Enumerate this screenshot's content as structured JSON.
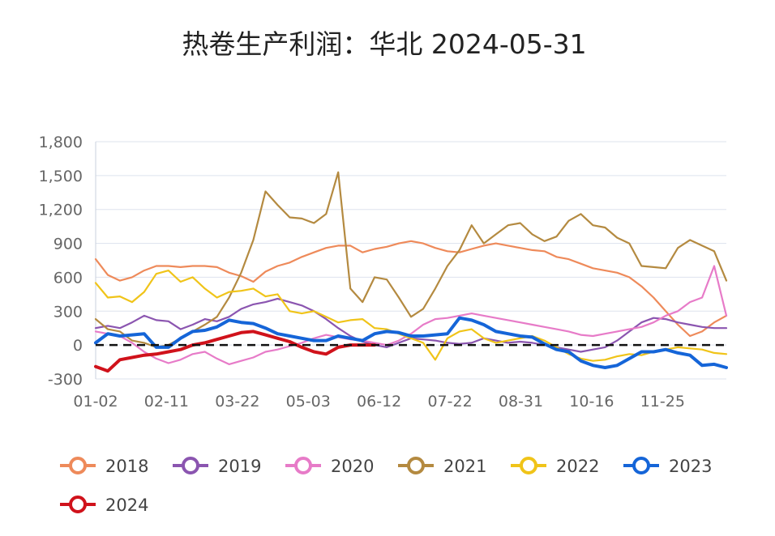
{
  "chart_data": {
    "type": "line",
    "title": "热卷生产利润：华北 2024-05-31",
    "xlabel": "",
    "ylabel": "",
    "x_tick_labels": [
      "01-02",
      "02-11",
      "03-22",
      "05-03",
      "06-12",
      "07-22",
      "08-31",
      "10-16",
      "11-25"
    ],
    "y_tick_labels": [
      "1,800",
      "1,500",
      "1,200",
      "900",
      "600",
      "300",
      "0",
      "-300"
    ],
    "ylim": [
      -300,
      1800
    ],
    "xlim": [
      0,
      52
    ],
    "zero_reference_line": "dashed black",
    "grid": "horizontal",
    "legend_position": "bottom",
    "series": [
      {
        "name": "2018",
        "color": "#ee8a5a",
        "x": [
          0,
          1,
          2,
          3,
          4,
          5,
          6,
          7,
          8,
          9,
          10,
          11,
          12,
          13,
          14,
          15,
          16,
          17,
          18,
          19,
          20,
          21,
          22,
          23,
          24,
          25,
          26,
          27,
          28,
          29,
          30,
          31,
          32,
          33,
          34,
          35,
          36,
          37,
          38,
          39,
          40,
          41,
          42,
          43,
          44,
          45,
          46,
          47,
          48,
          49,
          50,
          51,
          52
        ],
        "y": [
          760,
          620,
          570,
          600,
          660,
          700,
          700,
          690,
          700,
          700,
          690,
          640,
          610,
          560,
          650,
          700,
          730,
          780,
          820,
          860,
          880,
          880,
          820,
          850,
          870,
          900,
          920,
          900,
          860,
          830,
          820,
          850,
          880,
          900,
          880,
          860,
          840,
          830,
          780,
          760,
          720,
          680,
          660,
          640,
          600,
          520,
          420,
          300,
          180,
          80,
          120,
          200,
          260
        ]
      },
      {
        "name": "2019",
        "color": "#8b55b0",
        "x": [
          0,
          1,
          2,
          3,
          4,
          5,
          6,
          7,
          8,
          9,
          10,
          11,
          12,
          13,
          14,
          15,
          16,
          17,
          18,
          19,
          20,
          21,
          22,
          23,
          24,
          25,
          26,
          27,
          28,
          29,
          30,
          31,
          32,
          33,
          34,
          35,
          36,
          37,
          38,
          39,
          40,
          41,
          42,
          43,
          44,
          45,
          46,
          47,
          48,
          49,
          50,
          51,
          52
        ],
        "y": [
          150,
          170,
          150,
          200,
          260,
          220,
          210,
          140,
          180,
          230,
          210,
          250,
          320,
          360,
          380,
          410,
          380,
          350,
          300,
          230,
          150,
          80,
          30,
          0,
          -20,
          20,
          60,
          50,
          40,
          20,
          10,
          20,
          60,
          40,
          20,
          30,
          20,
          0,
          -20,
          -40,
          -60,
          -40,
          -20,
          40,
          120,
          200,
          240,
          230,
          200,
          180,
          160,
          150,
          150
        ]
      },
      {
        "name": "2020",
        "color": "#e77bc8",
        "x": [
          0,
          1,
          2,
          3,
          4,
          5,
          6,
          7,
          8,
          9,
          10,
          11,
          12,
          13,
          14,
          15,
          16,
          17,
          18,
          19,
          20,
          21,
          22,
          23,
          24,
          25,
          26,
          27,
          28,
          29,
          30,
          31,
          32,
          33,
          34,
          35,
          36,
          37,
          38,
          39,
          40,
          41,
          42,
          43,
          44,
          45,
          46,
          47,
          48,
          49,
          50,
          51,
          52
        ],
        "y": [
          120,
          100,
          80,
          20,
          -60,
          -120,
          -160,
          -130,
          -80,
          -60,
          -120,
          -170,
          -140,
          -110,
          -60,
          -40,
          -10,
          20,
          60,
          90,
          70,
          50,
          40,
          20,
          0,
          40,
          100,
          180,
          230,
          240,
          260,
          280,
          260,
          240,
          220,
          200,
          180,
          160,
          140,
          120,
          90,
          80,
          100,
          120,
          140,
          160,
          200,
          260,
          300,
          380,
          420,
          700,
          260
        ]
      },
      {
        "name": "2021",
        "color": "#b48a40",
        "x": [
          0,
          1,
          2,
          3,
          4,
          5,
          6,
          7,
          8,
          9,
          10,
          11,
          12,
          13,
          14,
          15,
          16,
          17,
          18,
          19,
          20,
          21,
          22,
          23,
          24,
          25,
          26,
          27,
          28,
          29,
          30,
          31,
          32,
          33,
          34,
          35,
          36,
          37,
          38,
          39,
          40,
          41,
          42,
          43,
          44,
          45,
          46,
          47,
          48,
          49,
          50,
          51,
          52
        ],
        "y": [
          230,
          140,
          120,
          40,
          20,
          -20,
          0,
          60,
          120,
          180,
          250,
          420,
          640,
          930,
          1360,
          1240,
          1130,
          1120,
          1080,
          1160,
          1530,
          500,
          380,
          600,
          580,
          420,
          250,
          320,
          500,
          700,
          840,
          1060,
          900,
          980,
          1060,
          1080,
          980,
          920,
          960,
          1100,
          1160,
          1060,
          1040,
          950,
          900,
          700,
          690,
          680,
          860,
          930,
          880,
          830,
          570
        ]
      },
      {
        "name": "2022",
        "color": "#f0c419",
        "x": [
          0,
          1,
          2,
          3,
          4,
          5,
          6,
          7,
          8,
          9,
          10,
          11,
          12,
          13,
          14,
          15,
          16,
          17,
          18,
          19,
          20,
          21,
          22,
          23,
          24,
          25,
          26,
          27,
          28,
          29,
          30,
          31,
          32,
          33,
          34,
          35,
          36,
          37,
          38,
          39,
          40,
          41,
          42,
          43,
          44,
          45,
          46,
          47,
          48,
          49,
          50,
          51,
          52
        ],
        "y": [
          550,
          420,
          430,
          380,
          470,
          630,
          660,
          560,
          600,
          500,
          420,
          470,
          480,
          500,
          430,
          450,
          300,
          280,
          300,
          250,
          200,
          220,
          230,
          150,
          140,
          100,
          60,
          20,
          -130,
          60,
          120,
          140,
          60,
          20,
          40,
          60,
          80,
          40,
          -20,
          -80,
          -120,
          -140,
          -130,
          -100,
          -80,
          -90,
          -60,
          -40,
          -20,
          -30,
          -40,
          -70,
          -80
        ]
      },
      {
        "name": "2023",
        "color": "#1565d8",
        "x": [
          0,
          1,
          2,
          3,
          4,
          5,
          6,
          7,
          8,
          9,
          10,
          11,
          12,
          13,
          14,
          15,
          16,
          17,
          18,
          19,
          20,
          21,
          22,
          23,
          24,
          25,
          26,
          27,
          28,
          29,
          30,
          31,
          32,
          33,
          34,
          35,
          36,
          37,
          38,
          39,
          40,
          41,
          42,
          43,
          44,
          45,
          46,
          47,
          48,
          49,
          50,
          51,
          52
        ],
        "y": [
          20,
          100,
          80,
          90,
          100,
          -20,
          -20,
          60,
          120,
          130,
          160,
          220,
          200,
          190,
          150,
          100,
          80,
          60,
          40,
          40,
          80,
          60,
          40,
          100,
          120,
          110,
          80,
          80,
          90,
          100,
          240,
          220,
          180,
          120,
          100,
          80,
          70,
          10,
          -40,
          -60,
          -140,
          -180,
          -200,
          -180,
          -120,
          -60,
          -60,
          -40,
          -70,
          -90,
          -180,
          -170,
          -200
        ]
      },
      {
        "name": "2024",
        "color": "#d0121b",
        "x": [
          0,
          1,
          2,
          3,
          4,
          5,
          6,
          7,
          8,
          9,
          10,
          11,
          12,
          13,
          14,
          15,
          16,
          17,
          18,
          19,
          20,
          21,
          22,
          23
        ],
        "y": [
          -190,
          -230,
          -130,
          -110,
          -90,
          -80,
          -60,
          -40,
          0,
          20,
          50,
          80,
          110,
          120,
          90,
          60,
          30,
          -20,
          -60,
          -80,
          -20,
          0,
          0,
          0
        ]
      }
    ]
  }
}
